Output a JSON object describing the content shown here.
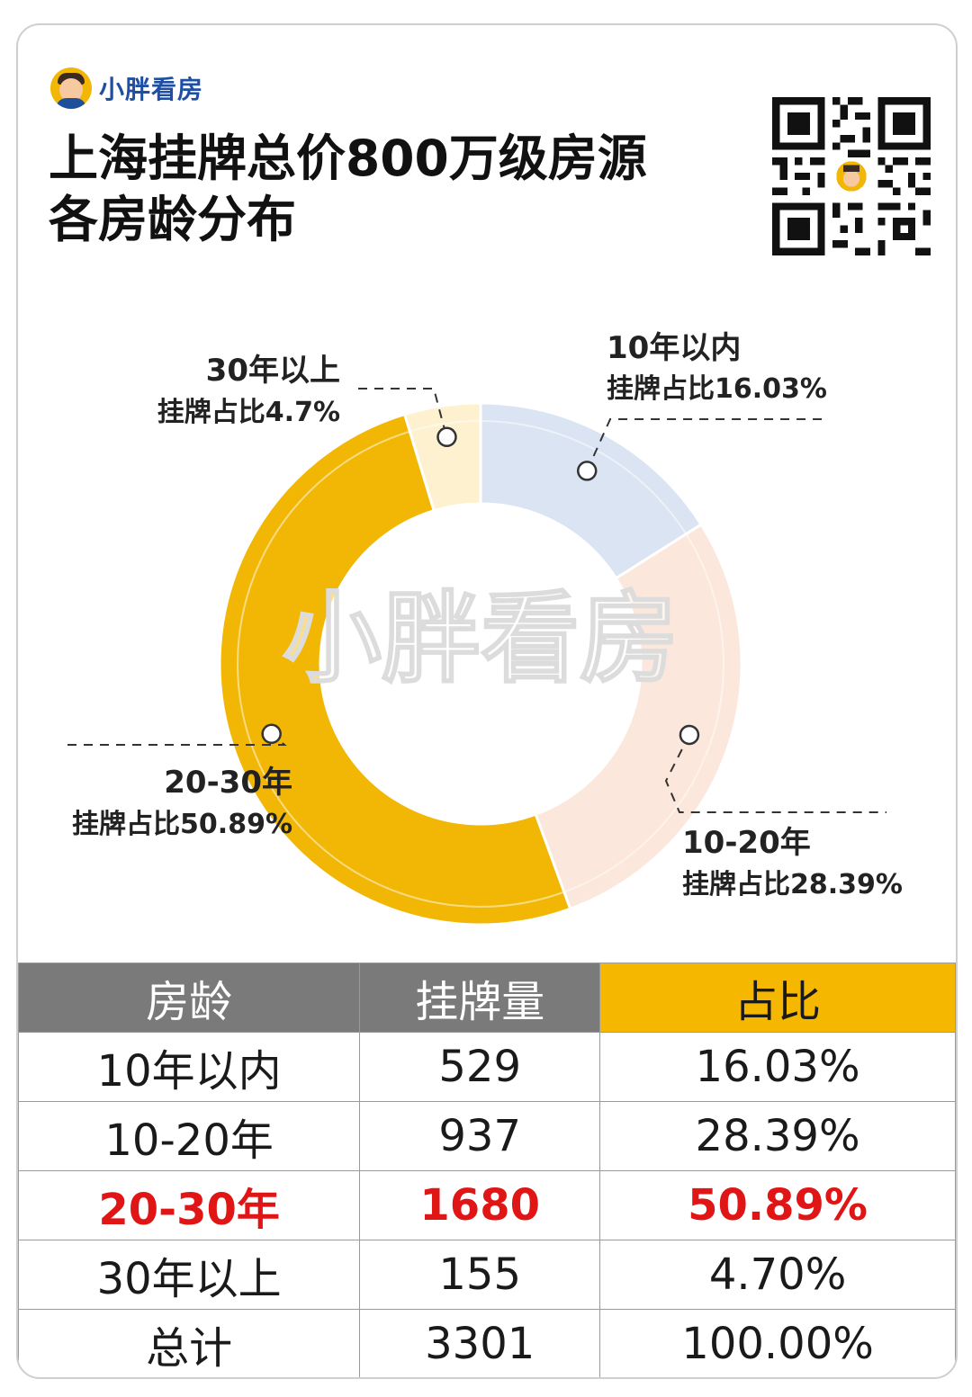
{
  "brand": {
    "name": "小胖看房",
    "logo_icon": "avatar-icon"
  },
  "title": {
    "line1": "上海挂牌总价800万级房源",
    "line2": "各房龄分布"
  },
  "qr_icon": "qr-code-icon",
  "watermark": "小胖看房",
  "chart_data": {
    "type": "pie",
    "title": "上海挂牌总价800万级房源各房龄分布",
    "donut": true,
    "slices": [
      {
        "label": "10年以内",
        "value_text": "挂牌占比16.03%",
        "value": 16.03,
        "color": "#dbe4f3"
      },
      {
        "label": "10-20年",
        "value_text": "挂牌占比28.39%",
        "value": 28.39,
        "color": "#fbe7db"
      },
      {
        "label": "20-30年",
        "value_text": "挂牌占比50.89%",
        "value": 50.89,
        "color": "#f2b705"
      },
      {
        "label": "30年以上",
        "value_text": "挂牌占比4.7%",
        "value": 4.7,
        "color": "#fdf1cf"
      }
    ]
  },
  "table": {
    "headers": [
      "房龄",
      "挂牌量",
      "占比"
    ],
    "rows": [
      [
        "10年以内",
        "529",
        "16.03%"
      ],
      [
        "10-20年",
        "937",
        "28.39%"
      ],
      [
        "20-30年",
        "1680",
        "50.89%"
      ],
      [
        "30年以上",
        "155",
        "4.70%"
      ],
      [
        "总计",
        "3301",
        "100.00%"
      ]
    ]
  },
  "colors": {
    "accent": "#f5b700",
    "header_gray": "#7a7a7a",
    "highlight_red": "#e01515",
    "brand_blue": "#1f4fa3"
  }
}
